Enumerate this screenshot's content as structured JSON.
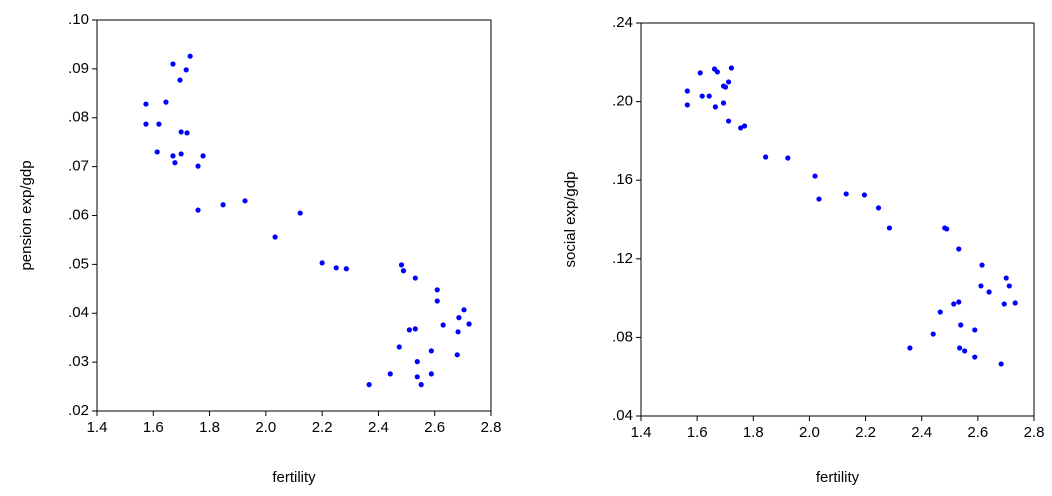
{
  "chart_data": [
    {
      "type": "scatter",
      "x_label": "fertility",
      "y_label": "pension exp/gdp",
      "color": "#0000ff",
      "xlim": [
        1.4,
        2.8
      ],
      "ylim": [
        0.02,
        0.1
      ],
      "xticks": [
        1.4,
        1.6,
        1.8,
        {
          "value": 2,
          "label": "2.0"
        },
        2.2,
        2.4,
        2.6,
        2.8
      ],
      "yticks": [
        {
          "value": 0.02,
          "label": ".02"
        },
        {
          "value": 0.03,
          "label": ".03"
        },
        {
          "value": 0.04,
          "label": ".04"
        },
        {
          "value": 0.05,
          "label": ".05"
        },
        {
          "value": 0.06,
          "label": ".06"
        },
        {
          "value": 0.07,
          "label": ".07"
        },
        {
          "value": 0.08,
          "label": ".08"
        },
        {
          "value": 0.09,
          "label": ".09"
        },
        {
          "value": 0.1,
          "label": ".10"
        }
      ],
      "x": [
        1.574,
        1.574,
        1.645,
        1.67,
        1.731,
        1.717,
        1.695,
        1.62,
        1.614,
        1.67,
        1.699,
        1.677,
        1.699,
        1.72,
        1.777,
        1.759,
        1.759,
        1.848,
        1.926,
        2.122,
        2.033,
        2.2,
        2.25,
        2.286,
        2.482,
        2.489,
        2.531,
        2.609,
        2.609,
        2.63,
        2.704,
        2.686,
        2.722,
        2.683,
        2.51,
        2.531,
        2.474,
        2.588,
        2.538,
        2.68,
        2.588,
        2.538,
        2.442,
        2.552,
        2.367
      ],
      "values": [
        0.0828,
        0.0787,
        0.0832,
        0.091,
        0.0926,
        0.0898,
        0.0877,
        0.0787,
        0.073,
        0.0722,
        0.0726,
        0.0708,
        0.0771,
        0.0769,
        0.0722,
        0.0701,
        0.0611,
        0.0622,
        0.063,
        0.0605,
        0.0556,
        0.0503,
        0.0493,
        0.0491,
        0.0499,
        0.0487,
        0.0472,
        0.0448,
        0.0425,
        0.0376,
        0.0407,
        0.0391,
        0.0378,
        0.0362,
        0.0366,
        0.0368,
        0.0331,
        0.0323,
        0.0301,
        0.0315,
        0.0276,
        0.027,
        0.0276,
        0.0254,
        0.0254
      ]
    },
    {
      "type": "scatter",
      "x_label": "fertility",
      "y_label": "social exp/gdp",
      "color": "#0000ff",
      "xlim": [
        1.4,
        2.8
      ],
      "ylim": [
        0.04,
        0.24
      ],
      "xticks": [
        1.4,
        1.6,
        1.8,
        {
          "value": 2,
          "label": "2.0"
        },
        2.2,
        2.4,
        2.6,
        2.8
      ],
      "yticks": [
        {
          "value": 0.04,
          "label": ".04"
        },
        {
          "value": 0.08,
          "label": ".08"
        },
        {
          "value": 0.12,
          "label": ".12"
        },
        {
          "value": 0.16,
          "label": ".16"
        },
        {
          "value": 0.2,
          "label": ".20"
        },
        {
          "value": 0.24,
          "label": ".24"
        }
      ],
      "x": [
        1.565,
        1.565,
        1.611,
        1.618,
        1.643,
        1.662,
        1.672,
        1.665,
        1.694,
        1.701,
        1.694,
        1.712,
        1.722,
        1.712,
        1.755,
        1.769,
        1.844,
        1.923,
        2.02,
        2.131,
        2.246,
        2.034,
        2.196,
        2.285,
        2.482,
        2.489,
        2.532,
        2.615,
        2.611,
        2.64,
        2.701,
        2.712,
        2.733,
        2.694,
        2.514,
        2.532,
        2.466,
        2.539,
        2.589,
        2.441,
        2.358,
        2.535,
        2.553,
        2.589,
        2.683
      ],
      "values": [
        0.2054,
        0.1983,
        0.2146,
        0.2028,
        0.2028,
        0.2166,
        0.2151,
        0.1973,
        0.2079,
        0.2074,
        0.1993,
        0.21,
        0.2171,
        0.1901,
        0.1866,
        0.1876,
        0.1718,
        0.1713,
        0.1621,
        0.153,
        0.1459,
        0.1504,
        0.1525,
        0.1357,
        0.1357,
        0.1352,
        0.125,
        0.1168,
        0.1062,
        0.1031,
        0.1102,
        0.1062,
        0.0975,
        0.097,
        0.097,
        0.098,
        0.0929,
        0.0863,
        0.0838,
        0.0817,
        0.0746,
        0.0746,
        0.0731,
        0.07,
        0.0665
      ]
    }
  ]
}
